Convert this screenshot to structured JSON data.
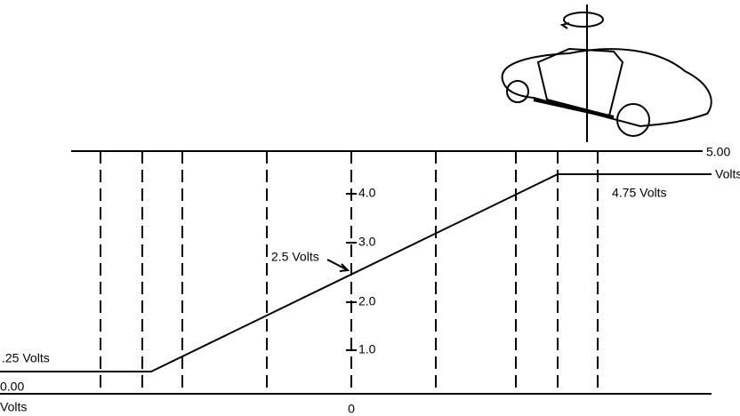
{
  "diagram": {
    "top_level": {
      "value": "5.00",
      "unit": "Volts"
    },
    "bottom_level": {
      "value": "0.00",
      "unit": "Volts"
    },
    "center_label": "0",
    "scale_labels": [
      "4.0",
      "3.0",
      "2.0",
      "1.0"
    ],
    "annotations": {
      "low": ".25 Volts",
      "mid": "2.5 Volts",
      "high": "4.75 Volts"
    }
  }
}
